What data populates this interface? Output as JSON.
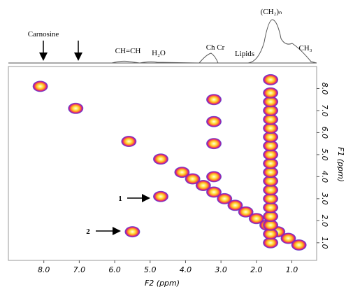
{
  "chart_data": {
    "type": "contour",
    "xlabel": "F2 (ppm)",
    "ylabel": "F1 (ppm)",
    "xlim": [
      9.0,
      0.3
    ],
    "ylim": [
      0.2,
      9.0
    ],
    "xticks": [
      {
        "value": 8,
        "label": "8.0"
      },
      {
        "value": 7,
        "label": "7.0"
      },
      {
        "value": 6,
        "label": "6.0"
      },
      {
        "value": 5,
        "label": "5.0"
      },
      {
        "value": 4,
        "label": "4.0"
      },
      {
        "value": 3,
        "label": "3.0"
      },
      {
        "value": 2,
        "label": "2.0"
      },
      {
        "value": 1,
        "label": "1.0"
      }
    ],
    "yticks": [
      {
        "value": 8,
        "label": "8.0"
      },
      {
        "value": 7,
        "label": "7.0"
      },
      {
        "value": 6,
        "label": "6.0"
      },
      {
        "value": 5,
        "label": "5.0"
      },
      {
        "value": 4,
        "label": "4.0"
      },
      {
        "value": 3,
        "label": "3.0"
      },
      {
        "value": 2,
        "label": "2.0"
      },
      {
        "value": 1,
        "label": "1.0"
      }
    ],
    "peaks": {
      "x": [
        8.1,
        7.1,
        5.6,
        4.7,
        4.7,
        5.5,
        4.1,
        3.8,
        3.5,
        3.2,
        2.9,
        2.6,
        2.3,
        2.0,
        1.7,
        1.4,
        1.1,
        0.8,
        1.6,
        1.6,
        1.6,
        1.6,
        1.6,
        1.6,
        1.6,
        1.6,
        1.6,
        1.6,
        1.6,
        1.6,
        1.6,
        1.6,
        1.6,
        1.6,
        1.6,
        1.6,
        1.6,
        3.2,
        3.2,
        3.2,
        3.2
      ],
      "y": [
        8.1,
        7.1,
        5.6,
        4.8,
        3.1,
        1.5,
        4.2,
        3.9,
        3.6,
        3.3,
        3.0,
        2.7,
        2.4,
        2.1,
        1.8,
        1.5,
        1.2,
        0.9,
        1.0,
        1.4,
        1.8,
        2.2,
        2.6,
        3.0,
        3.4,
        3.8,
        4.2,
        4.6,
        5.0,
        5.4,
        5.8,
        6.2,
        6.6,
        7.0,
        7.4,
        7.8,
        8.4,
        7.5,
        6.5,
        5.5,
        4.0
      ]
    },
    "annotations": [
      "Carnosine",
      "CH=CH",
      "H₂O",
      "Ch Cr",
      "Lipids",
      "(CH₂)ₙ",
      "CH₃",
      "1",
      "2"
    ]
  }
}
